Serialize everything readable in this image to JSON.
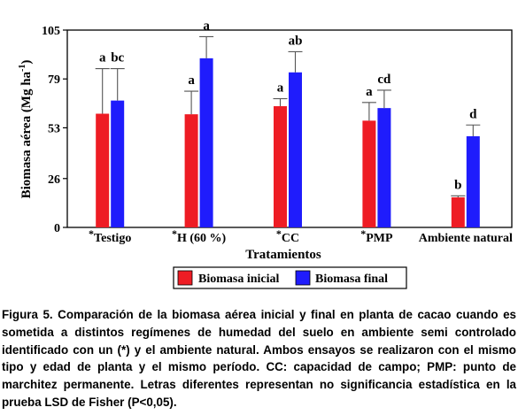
{
  "chart_data": {
    "type": "bar",
    "xlabel": "Tratamientos",
    "ylabel": "Biomasa aérea (Mg ha",
    "ylabel_superscript": "-1",
    "ylabel_close": ")",
    "ylim": [
      0,
      105
    ],
    "yticks": [
      0,
      26,
      53,
      79,
      105
    ],
    "grid": false,
    "legend_position": "bottom-center",
    "categories": [
      "Testigo",
      "H (60 %)",
      "CC",
      "PMP",
      "Ambiente natural"
    ],
    "category_markers": [
      "*",
      "*",
      "*",
      "*",
      ""
    ],
    "series": [
      {
        "name": "Biomasa inicial",
        "color": "#ee1c24",
        "values": [
          60.5,
          60.2,
          64.5,
          56.8,
          16.0
        ],
        "error_upper": [
          84.5,
          72.5,
          68.5,
          66.5,
          16.8
        ],
        "letters": [
          "a",
          "a",
          "a",
          "a",
          "b"
        ]
      },
      {
        "name": "Biomasa final",
        "color": "#1f1cfc",
        "values": [
          67.5,
          90.0,
          82.5,
          63.5,
          48.5
        ],
        "error_upper": [
          84.5,
          101.5,
          93.5,
          73.0,
          54.5
        ],
        "letters": [
          "bc",
          "a",
          "ab",
          "cd",
          "d"
        ]
      }
    ]
  },
  "caption": "Figura 5. Comparación de la biomasa aérea inicial y final en planta de cacao cuando es sometida a distintos regímenes de humedad del suelo en ambiente semi controlado identificado con un (*) y el ambiente natural. Ambos ensayos se realizaron con el mismo tipo y edad de planta y el mismo período. CC: capacidad de campo; PMP: punto de marchitez permanente. Letras diferentes representan no significancia estadística en la prueba LSD de Fisher (P<0,05)."
}
